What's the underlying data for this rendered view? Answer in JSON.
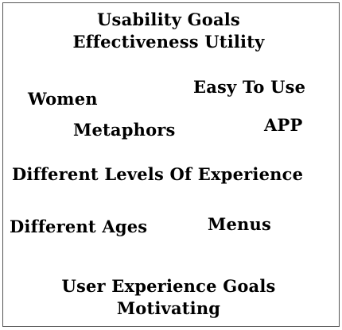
{
  "header": {
    "line1": "Usability Goals",
    "line2": "Effectiveness Utility"
  },
  "terms": {
    "easy_to_use": "Easy To Use",
    "women": "Women",
    "app": "APP",
    "metaphors": "Metaphors",
    "different_levels": "Different Levels Of Experience",
    "different_ages": "Different Ages",
    "menus": "Menus"
  },
  "footer": {
    "line1": "User Experience Goals",
    "line2": "Motivating"
  },
  "colors": {
    "text": "#000000",
    "border": "#555555",
    "background": "#ffffff"
  }
}
